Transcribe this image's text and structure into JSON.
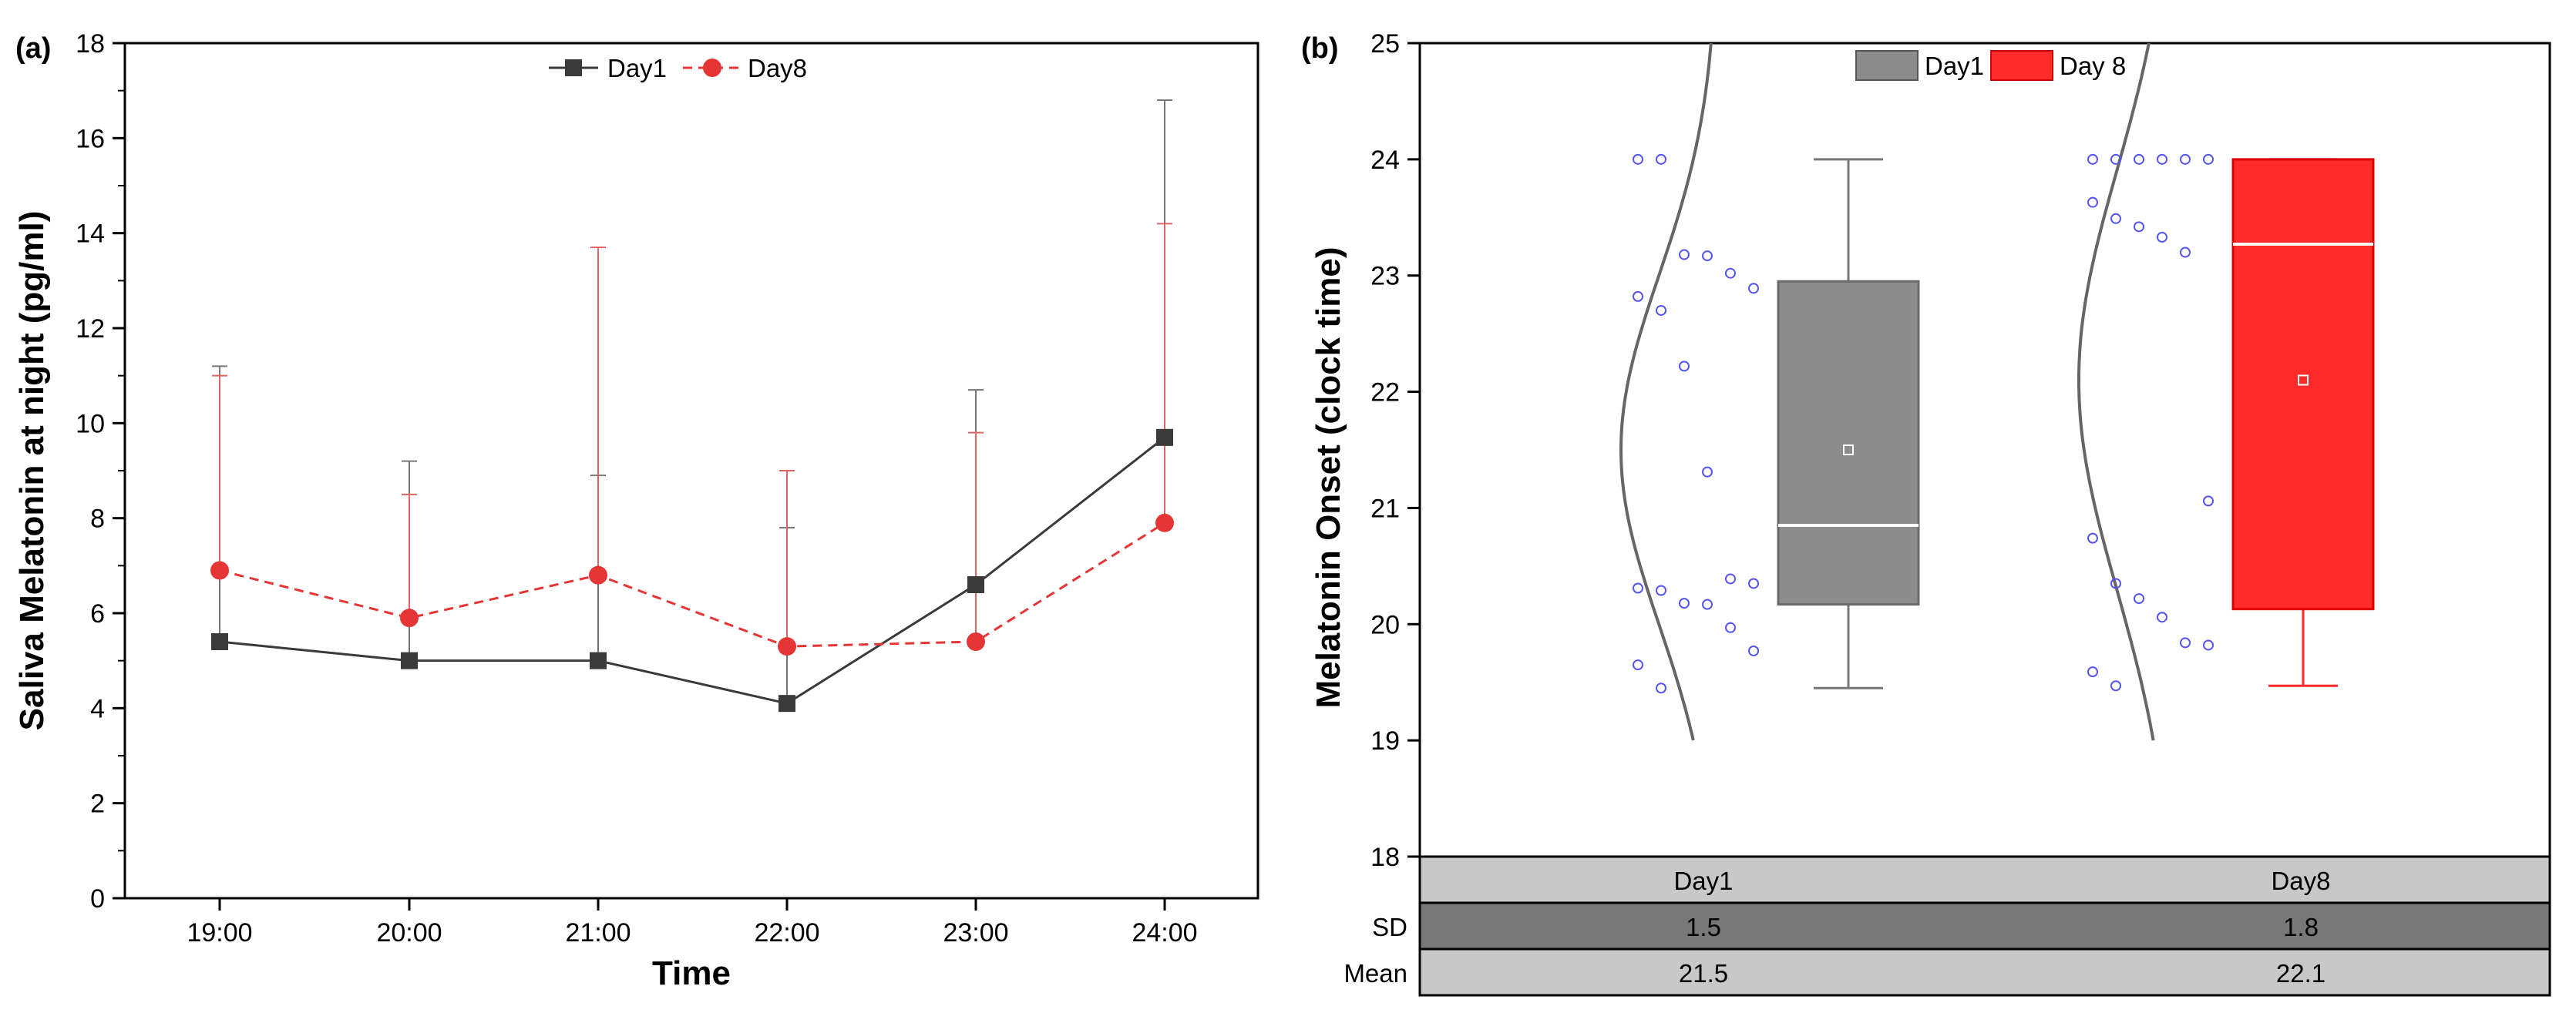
{
  "chart_data": [
    {
      "panel_label": "(a)",
      "type": "line",
      "title": "",
      "xlabel": "Time",
      "ylabel": "Saliva Melatonin at night (pg/ml)",
      "categories": [
        "19:00",
        "20:00",
        "21:00",
        "22:00",
        "23:00",
        "24:00"
      ],
      "ylim": [
        0,
        18
      ],
      "yticks": [
        "0",
        "2",
        "4",
        "6",
        "8",
        "10",
        "12",
        "14",
        "16",
        "18"
      ],
      "legend_position": "top-center",
      "series": [
        {
          "name": "Day1",
          "color": "#3a3a3a",
          "line_style": "solid",
          "marker": "square",
          "values": [
            5.4,
            5.0,
            5.0,
            4.1,
            6.6,
            9.7
          ],
          "error_upper": [
            11.2,
            9.2,
            8.9,
            7.8,
            10.7,
            16.8
          ]
        },
        {
          "name": "Day8",
          "color": "#e53535",
          "line_style": "dashed",
          "marker": "circle",
          "values": [
            6.9,
            5.9,
            6.8,
            5.3,
            5.4,
            7.9
          ],
          "error_upper": [
            11.0,
            8.5,
            13.7,
            9.0,
            9.8,
            14.2
          ]
        }
      ]
    },
    {
      "panel_label": "(b)",
      "type": "box",
      "title": "",
      "xlabel": "",
      "ylabel": "Melatonin Onset (clock time)",
      "ylim": [
        18,
        25
      ],
      "yticks": [
        "18",
        "19",
        "20",
        "21",
        "22",
        "23",
        "24",
        "25"
      ],
      "legend_position": "top-center",
      "legend": [
        "Day1",
        "Day 8"
      ],
      "boxes": [
        {
          "name": "Day1",
          "color": "#8c8c8c",
          "min": 19.45,
          "q1": 20.17,
          "median": 20.85,
          "q3": 22.95,
          "max": 24.0,
          "mean": 21.5,
          "points": [
            24.0,
            24.0,
            23.18,
            23.17,
            23.02,
            22.89,
            22.82,
            22.7,
            22.22,
            21.31,
            20.39,
            20.35,
            20.31,
            20.29,
            20.18,
            20.17,
            19.97,
            19.77,
            19.65,
            19.45
          ]
        },
        {
          "name": "Day8",
          "color": "#ff2a2a",
          "min": 19.47,
          "q1": 20.13,
          "median": 23.27,
          "q3": 24.0,
          "max": 24.0,
          "mean": 22.1,
          "points": [
            24.0,
            24.0,
            24.0,
            24.0,
            24.0,
            24.0,
            23.63,
            23.49,
            23.42,
            23.33,
            23.2,
            21.06,
            20.74,
            20.35,
            20.22,
            20.06,
            19.84,
            19.82,
            19.59,
            19.47
          ]
        }
      ],
      "table": {
        "columns": [
          "Day1",
          "Day8"
        ],
        "rows": [
          {
            "label": "SD",
            "values": [
              "1.5",
              "1.8"
            ]
          },
          {
            "label": "Mean",
            "values": [
              "21.5",
              "22.1"
            ]
          }
        ]
      }
    }
  ]
}
